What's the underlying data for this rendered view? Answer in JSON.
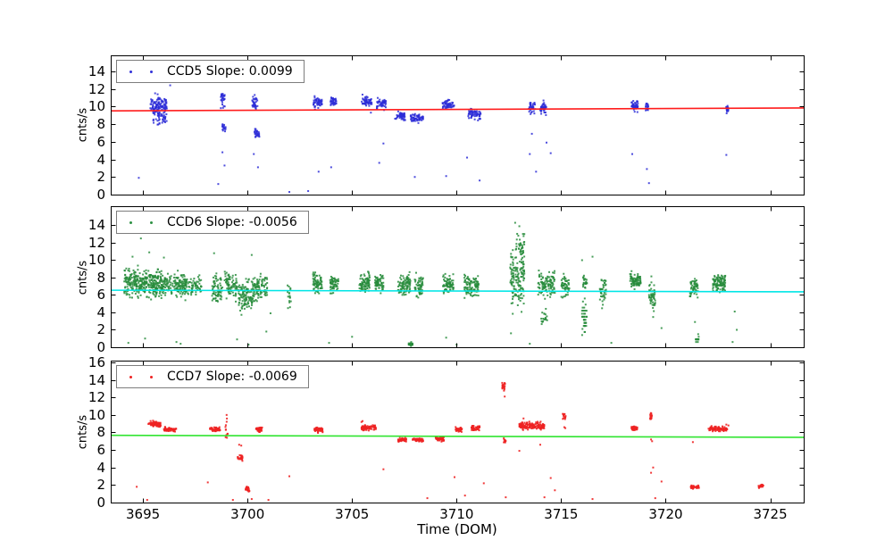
{
  "figure": {
    "background": "#ffffff"
  },
  "chart_data": [
    {
      "type": "scatter",
      "name": "CCD5",
      "legend_label": "CCD5 Slope: 0.0099",
      "slope": 0.0099,
      "ylabel": "cnts/s",
      "xlabel": "",
      "point_color": "#3232d8",
      "point_color_rgba": "rgba(45,45,215,0.85)",
      "fit_color": "#ff1c1c",
      "xlim": [
        3693.5,
        3726.6
      ],
      "ylim": [
        0,
        15.7
      ],
      "yticks": [
        0,
        2,
        4,
        6,
        8,
        10,
        12,
        14
      ],
      "xticks": [
        3695,
        3700,
        3705,
        3710,
        3715,
        3720,
        3725
      ],
      "show_xticklabels": false,
      "grid": false,
      "legend_position": "upper-left",
      "fit_line": {
        "x": [
          3693.5,
          3726.6
        ],
        "y": [
          9.5,
          9.83
        ]
      },
      "clusters": [
        [
          3695.75,
          0.4,
          10.2,
          1.6,
          100,
          0
        ],
        [
          3695.8,
          0.35,
          9.0,
          1.9,
          60,
          0
        ],
        [
          3698.82,
          0.1,
          10.7,
          1.2,
          28,
          0
        ],
        [
          3698.87,
          0.08,
          7.6,
          0.8,
          16,
          0
        ],
        [
          3700.35,
          0.13,
          10.5,
          1.1,
          32,
          0
        ],
        [
          3700.45,
          0.12,
          7.0,
          0.8,
          26,
          0
        ],
        [
          3703.35,
          0.22,
          10.4,
          0.9,
          50,
          0
        ],
        [
          3704.1,
          0.15,
          10.5,
          0.9,
          36,
          0
        ],
        [
          3705.7,
          0.25,
          10.6,
          0.9,
          55,
          0
        ],
        [
          3706.4,
          0.22,
          10.4,
          1.0,
          50,
          0
        ],
        [
          3707.3,
          0.25,
          8.9,
          0.7,
          50,
          0
        ],
        [
          3708.1,
          0.3,
          8.7,
          0.7,
          60,
          0
        ],
        [
          3709.6,
          0.28,
          10.2,
          0.8,
          55,
          0
        ],
        [
          3710.85,
          0.3,
          9.1,
          0.8,
          60,
          0
        ],
        [
          3713.6,
          0.16,
          9.9,
          0.9,
          40,
          0
        ],
        [
          3714.15,
          0.16,
          9.8,
          1.0,
          45,
          0
        ],
        [
          3718.5,
          0.18,
          10.1,
          0.9,
          45,
          0
        ],
        [
          3719.1,
          0.08,
          10.0,
          0.6,
          16,
          0
        ],
        [
          3722.95,
          0.06,
          9.7,
          1.0,
          20,
          0
        ]
      ],
      "strays": [
        [
          3694.8,
          1.9
        ],
        [
          3696.3,
          12.4
        ],
        [
          3698.6,
          1.2
        ],
        [
          3698.8,
          4.8
        ],
        [
          3698.9,
          3.3
        ],
        [
          3700.3,
          4.6
        ],
        [
          3700.5,
          3.1
        ],
        [
          3702.0,
          0.3
        ],
        [
          3702.9,
          0.4
        ],
        [
          3703.4,
          2.6
        ],
        [
          3704.0,
          3.1
        ],
        [
          3705.9,
          9.3
        ],
        [
          3706.3,
          3.6
        ],
        [
          3706.5,
          5.8
        ],
        [
          3708.0,
          2.0
        ],
        [
          3709.5,
          2.1
        ],
        [
          3710.5,
          4.2
        ],
        [
          3711.1,
          1.6
        ],
        [
          3713.5,
          4.6
        ],
        [
          3713.6,
          6.9
        ],
        [
          3713.8,
          2.6
        ],
        [
          3714.3,
          5.9
        ],
        [
          3714.5,
          4.7
        ],
        [
          3718.4,
          4.6
        ],
        [
          3719.1,
          2.9
        ],
        [
          3719.2,
          1.3
        ],
        [
          3722.9,
          4.5
        ]
      ]
    },
    {
      "type": "scatter",
      "name": "CCD6",
      "legend_label": "CCD6 Slope: -0.0056",
      "slope": -0.0056,
      "ylabel": "cnts/s",
      "xlabel": "",
      "point_color": "#2e9144",
      "point_color_rgba": "rgba(40,140,60,0.85)",
      "fit_color": "#00e6e6",
      "xlim": [
        3693.5,
        3726.6
      ],
      "ylim": [
        0,
        16.1
      ],
      "yticks": [
        0,
        2,
        4,
        6,
        8,
        10,
        12,
        14
      ],
      "xticks": [
        3695,
        3700,
        3705,
        3710,
        3715,
        3720,
        3725
      ],
      "show_xticklabels": false,
      "grid": false,
      "legend_position": "upper-left",
      "fit_line": {
        "x": [
          3693.5,
          3726.6
        ],
        "y": [
          6.55,
          6.36
        ]
      },
      "clusters": [
        [
          3695.0,
          0.9,
          7.4,
          2.2,
          330,
          0
        ],
        [
          3696.5,
          0.6,
          7.2,
          1.9,
          160,
          0
        ],
        [
          3697.4,
          0.4,
          7.0,
          1.6,
          70,
          0
        ],
        [
          3698.55,
          0.25,
          6.6,
          2.6,
          70,
          0
        ],
        [
          3699.2,
          0.3,
          7.0,
          2.2,
          80,
          0
        ],
        [
          3699.9,
          0.35,
          5.9,
          2.9,
          110,
          0
        ],
        [
          3700.6,
          0.35,
          6.8,
          2.1,
          100,
          0
        ],
        [
          3702.0,
          0.1,
          5.6,
          2.4,
          16,
          0
        ],
        [
          3703.35,
          0.22,
          7.4,
          1.5,
          70,
          0
        ],
        [
          3704.15,
          0.2,
          7.3,
          1.5,
          60,
          0
        ],
        [
          3705.6,
          0.25,
          7.4,
          1.5,
          80,
          0
        ],
        [
          3706.3,
          0.2,
          7.3,
          1.4,
          65,
          0
        ],
        [
          3707.5,
          0.3,
          7.2,
          1.7,
          90,
          0
        ],
        [
          3707.8,
          0.1,
          0.35,
          0.3,
          22,
          0
        ],
        [
          3708.2,
          0.2,
          7.0,
          1.6,
          55,
          0
        ],
        [
          3709.6,
          0.25,
          7.3,
          1.5,
          75,
          0
        ],
        [
          3710.7,
          0.35,
          7.0,
          1.9,
          105,
          0
        ],
        [
          3712.9,
          0.35,
          8.2,
          5.5,
          150,
          0
        ],
        [
          3713.1,
          0.15,
          11.5,
          2.5,
          30,
          0
        ],
        [
          3714.3,
          0.4,
          7.2,
          2.0,
          110,
          0
        ],
        [
          3714.2,
          0.15,
          3.5,
          1.5,
          18,
          0
        ],
        [
          3715.2,
          0.2,
          7.0,
          1.7,
          55,
          0
        ],
        [
          3716.1,
          0.12,
          3.4,
          2.9,
          40,
          0.35
        ],
        [
          3716.15,
          0.1,
          7.6,
          1.2,
          25,
          0
        ],
        [
          3717.0,
          0.15,
          6.3,
          2.2,
          40,
          0
        ],
        [
          3718.55,
          0.25,
          7.6,
          1.3,
          85,
          0
        ],
        [
          3719.35,
          0.15,
          5.8,
          2.8,
          50,
          0
        ],
        [
          3721.35,
          0.2,
          6.8,
          1.8,
          55,
          0
        ],
        [
          3721.5,
          0.08,
          0.9,
          0.7,
          16,
          0.3
        ],
        [
          3722.55,
          0.3,
          7.4,
          1.5,
          105,
          0
        ]
      ],
      "strays": [
        [
          3694.3,
          0.5
        ],
        [
          3694.5,
          10.4
        ],
        [
          3694.9,
          12.5
        ],
        [
          3695.1,
          1.0
        ],
        [
          3695.3,
          10.9
        ],
        [
          3696.0,
          10.3
        ],
        [
          3696.6,
          0.6
        ],
        [
          3696.8,
          0.4
        ],
        [
          3698.4,
          10.8
        ],
        [
          3699.5,
          0.9
        ],
        [
          3700.05,
          0.3
        ],
        [
          3700.2,
          10.6
        ],
        [
          3700.9,
          1.8
        ],
        [
          3701.1,
          3.9
        ],
        [
          3703.9,
          0.5
        ],
        [
          3705.0,
          1.2
        ],
        [
          3709.5,
          1.1
        ],
        [
          3710.0,
          0.3
        ],
        [
          3712.6,
          1.6
        ],
        [
          3712.8,
          14.3
        ],
        [
          3713.0,
          13.9
        ],
        [
          3713.5,
          0.4
        ],
        [
          3716.0,
          10.0
        ],
        [
          3716.5,
          10.4
        ],
        [
          3717.4,
          0.5
        ],
        [
          3719.8,
          2.2
        ],
        [
          3721.4,
          2.9
        ],
        [
          3723.2,
          0.6
        ],
        [
          3723.3,
          4.1
        ],
        [
          3723.4,
          2.0
        ]
      ]
    },
    {
      "type": "scatter",
      "name": "CCD7",
      "legend_label": "CCD7 Slope: -0.0069",
      "slope": -0.0069,
      "ylabel": "cnts/s",
      "xlabel": "Time (DOM)",
      "point_color": "#ee2222",
      "point_color_rgba": "rgba(238,34,34,0.9)",
      "fit_color": "#30e430",
      "xlim": [
        3693.5,
        3726.6
      ],
      "ylim": [
        0,
        16.1
      ],
      "yticks": [
        0,
        2,
        4,
        6,
        8,
        10,
        12,
        14,
        16
      ],
      "xticks": [
        3695,
        3700,
        3705,
        3710,
        3715,
        3720,
        3725
      ],
      "show_xticklabels": true,
      "grid": false,
      "legend_position": "upper-left",
      "fit_line": {
        "x": [
          3693.5,
          3726.6
        ],
        "y": [
          7.67,
          7.44
        ]
      },
      "clusters": [
        [
          3695.55,
          0.3,
          8.95,
          0.45,
          70,
          0
        ],
        [
          3696.3,
          0.3,
          8.35,
          0.35,
          60,
          0
        ],
        [
          3698.45,
          0.25,
          8.35,
          0.35,
          55,
          0
        ],
        [
          3699.0,
          0.06,
          8.3,
          1.6,
          12,
          0
        ],
        [
          3699.65,
          0.12,
          5.1,
          0.6,
          25,
          0
        ],
        [
          3700.0,
          0.1,
          1.55,
          0.4,
          30,
          0
        ],
        [
          3700.55,
          0.15,
          8.4,
          0.4,
          40,
          0
        ],
        [
          3703.4,
          0.2,
          8.3,
          0.4,
          45,
          0
        ],
        [
          3705.8,
          0.35,
          8.55,
          0.45,
          70,
          0
        ],
        [
          3707.4,
          0.2,
          7.15,
          0.3,
          45,
          0
        ],
        [
          3708.15,
          0.25,
          7.15,
          0.3,
          50,
          0
        ],
        [
          3709.2,
          0.2,
          7.25,
          0.3,
          40,
          0
        ],
        [
          3710.1,
          0.15,
          8.35,
          0.35,
          35,
          0
        ],
        [
          3710.9,
          0.2,
          8.5,
          0.5,
          45,
          0
        ],
        [
          3712.25,
          0.07,
          13.3,
          0.6,
          22,
          0
        ],
        [
          3712.3,
          0.05,
          7.1,
          0.5,
          10,
          0
        ],
        [
          3713.6,
          0.6,
          8.75,
          0.6,
          140,
          0
        ],
        [
          3715.15,
          0.08,
          9.85,
          0.5,
          15,
          0
        ],
        [
          3718.5,
          0.15,
          8.45,
          0.35,
          40,
          0
        ],
        [
          3719.3,
          0.06,
          9.85,
          0.55,
          14,
          0
        ],
        [
          3721.4,
          0.2,
          1.8,
          0.3,
          35,
          0
        ],
        [
          3722.5,
          0.45,
          8.4,
          0.4,
          85,
          0
        ],
        [
          3724.55,
          0.12,
          1.9,
          0.3,
          20,
          0
        ]
      ],
      "strays": [
        [
          3694.7,
          1.8
        ],
        [
          3695.2,
          0.3
        ],
        [
          3698.1,
          2.3
        ],
        [
          3699.0,
          10.0
        ],
        [
          3699.3,
          0.3
        ],
        [
          3699.6,
          6.6
        ],
        [
          3699.7,
          6.5
        ],
        [
          3700.2,
          0.4
        ],
        [
          3701.0,
          0.3
        ],
        [
          3702.0,
          3.0
        ],
        [
          3705.45,
          9.2
        ],
        [
          3705.5,
          9.3
        ],
        [
          3706.5,
          3.8
        ],
        [
          3708.6,
          0.5
        ],
        [
          3709.9,
          2.9
        ],
        [
          3710.4,
          0.8
        ],
        [
          3711.3,
          2.2
        ],
        [
          3712.3,
          12.1
        ],
        [
          3712.35,
          0.6
        ],
        [
          3713.0,
          5.9
        ],
        [
          3713.2,
          9.6
        ],
        [
          3714.0,
          6.6
        ],
        [
          3714.2,
          0.6
        ],
        [
          3714.5,
          2.8
        ],
        [
          3714.7,
          1.4
        ],
        [
          3715.15,
          8.6
        ],
        [
          3715.2,
          8.5
        ],
        [
          3716.5,
          0.4
        ],
        [
          3719.3,
          7.2
        ],
        [
          3719.3,
          3.4
        ],
        [
          3719.35,
          7.0
        ],
        [
          3719.4,
          4.0
        ],
        [
          3719.5,
          0.5
        ],
        [
          3719.8,
          2.4
        ],
        [
          3721.3,
          6.9
        ],
        [
          3722.9,
          8.9
        ],
        [
          3723.0,
          8.8
        ]
      ]
    }
  ]
}
